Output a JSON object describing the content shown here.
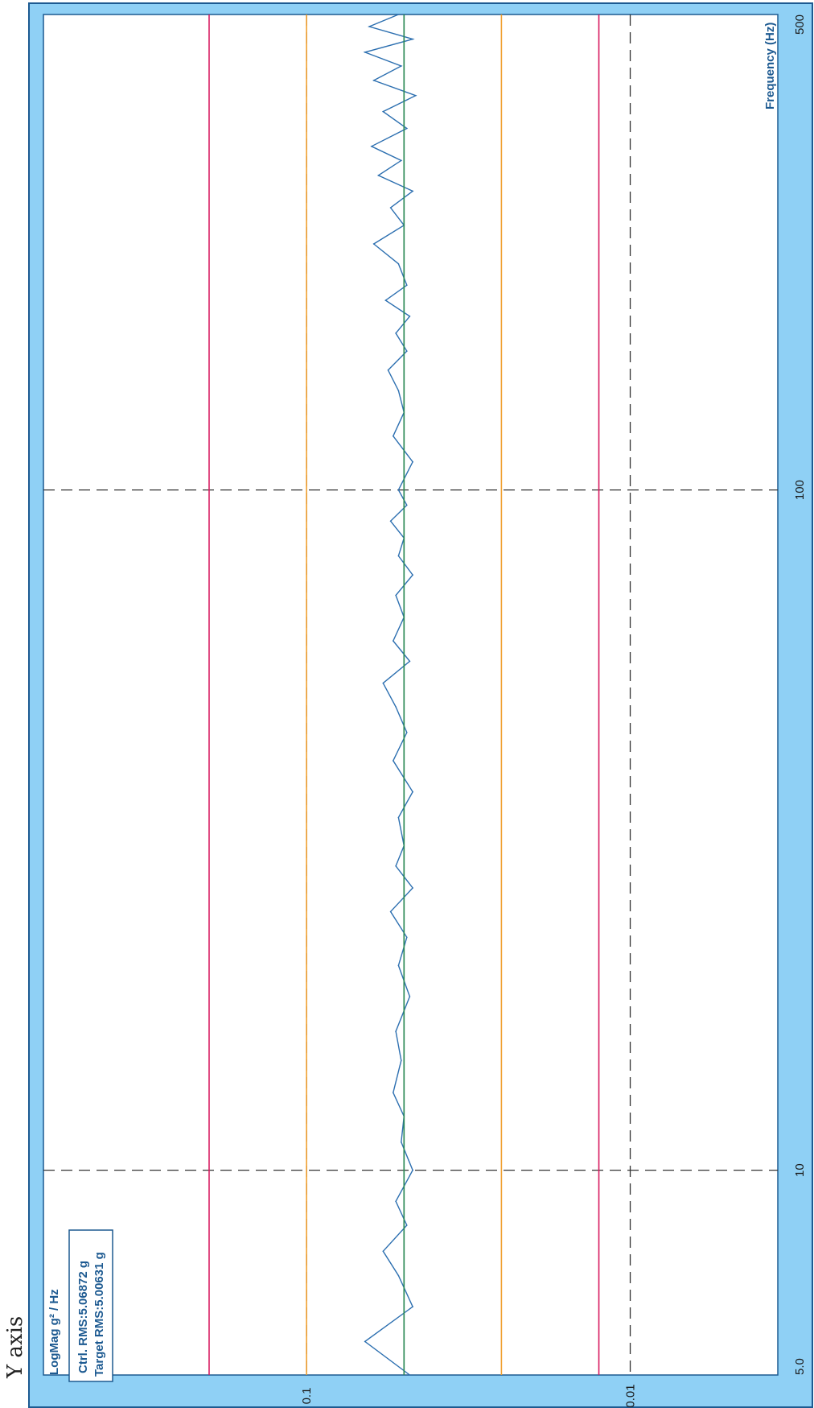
{
  "page_title": "Y axis",
  "chart_data": {
    "type": "line",
    "title": "",
    "ylabel": "LogMag g² / Hz",
    "xlabel": "Frequency (Hz)",
    "x_scale": "log",
    "y_scale": "log",
    "xlim": [
      5,
      500
    ],
    "ylim": [
      0.0035,
      0.65
    ],
    "x_ticks": [
      5,
      10,
      100,
      500
    ],
    "x_tick_labels": [
      "5.0",
      "10",
      "100",
      "500"
    ],
    "y_ticks": [
      0.1,
      0.01
    ],
    "y_tick_labels": [
      "0.1",
      "0.01"
    ],
    "grid": true,
    "annotations": {
      "ctrl_rms": "Ctrl. RMS:5.06872 g",
      "target_rms": "Target RMS:5.00631 g"
    },
    "reference_lines": [
      {
        "role": "abort-high",
        "y": 0.2,
        "color": "#d81b60"
      },
      {
        "role": "alarm-high",
        "y": 0.1,
        "color": "#f0a030"
      },
      {
        "role": "target",
        "y": 0.05,
        "color": "#2e8b57"
      },
      {
        "role": "alarm-low",
        "y": 0.025,
        "color": "#f0a030"
      },
      {
        "role": "abort-low",
        "y": 0.0125,
        "color": "#d81b60"
      }
    ],
    "series": [
      {
        "role": "control",
        "color": "#2c6fb0",
        "x": [
          5.0,
          5.6,
          6.3,
          7.0,
          7.6,
          8.3,
          9.0,
          10.0,
          11.0,
          12.0,
          13.0,
          14.5,
          16.0,
          18.0,
          20.0,
          22.0,
          24.0,
          26.0,
          28.0,
          30.0,
          33.0,
          36.0,
          40.0,
          44.0,
          48.0,
          52.0,
          56.0,
          60.0,
          65.0,
          70.0,
          75.0,
          80.0,
          85.0,
          90.0,
          95.0,
          100.0,
          110.0,
          120.0,
          130.0,
          140.0,
          150.0,
          160.0,
          170.0,
          180.0,
          190.0,
          200.0,
          215.0,
          230.0,
          245.0,
          260.0,
          275.0,
          290.0,
          305.0,
          320.0,
          340.0,
          360.0,
          380.0,
          400.0,
          420.0,
          440.0,
          460.0,
          480.0,
          500.0
        ],
        "y": [
          0.048,
          0.066,
          0.047,
          0.052,
          0.058,
          0.049,
          0.053,
          0.047,
          0.051,
          0.05,
          0.054,
          0.051,
          0.053,
          0.048,
          0.052,
          0.049,
          0.055,
          0.047,
          0.053,
          0.05,
          0.052,
          0.047,
          0.054,
          0.049,
          0.053,
          0.058,
          0.048,
          0.054,
          0.05,
          0.053,
          0.047,
          0.052,
          0.05,
          0.055,
          0.049,
          0.052,
          0.047,
          0.054,
          0.05,
          0.052,
          0.056,
          0.049,
          0.053,
          0.048,
          0.057,
          0.049,
          0.052,
          0.062,
          0.05,
          0.055,
          0.047,
          0.06,
          0.051,
          0.063,
          0.049,
          0.058,
          0.046,
          0.062,
          0.051,
          0.066,
          0.047,
          0.064,
          0.052
        ]
      },
      {
        "role": "target",
        "color": "#2e8b57",
        "x": [
          5,
          500
        ],
        "y": [
          0.05,
          0.05
        ]
      }
    ]
  }
}
